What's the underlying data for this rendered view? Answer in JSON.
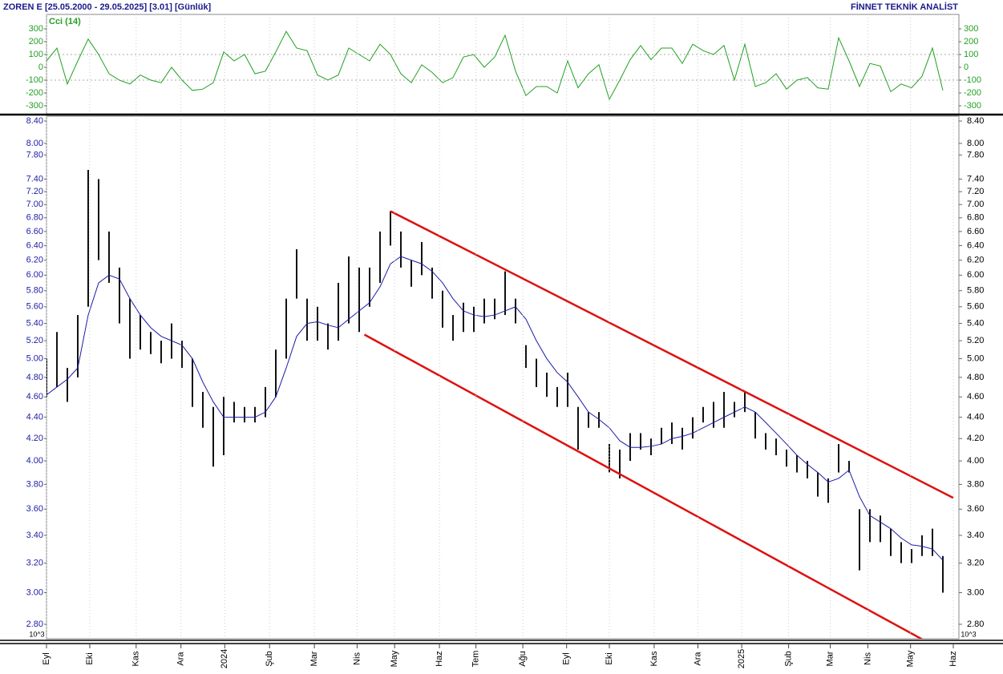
{
  "header": {
    "title": "ZOREN E  [25.05.2000 - 29.05.2025]  [3.01]  [Günlük]",
    "source": "FİNNET TEKNİK ANALİST",
    "scale_note": "10^3"
  },
  "chart_data": [
    {
      "type": "line",
      "title": "Cci (14)",
      "color": "#22a022",
      "x": [
        0,
        1,
        2,
        3,
        4,
        5,
        6,
        7,
        8,
        9,
        10,
        11,
        12,
        13,
        14,
        15,
        16,
        17,
        18,
        19,
        20,
        21,
        22,
        23,
        24,
        25,
        26,
        27,
        28,
        29,
        30,
        31,
        32,
        33,
        34,
        35,
        36,
        37,
        38,
        39,
        40,
        41,
        42,
        43,
        44,
        45,
        46,
        47,
        48,
        49,
        50,
        51,
        52,
        53,
        54,
        55,
        56,
        57,
        58,
        59,
        60,
        61,
        62,
        63,
        64,
        65,
        66,
        67,
        68,
        69,
        70,
        71,
        72,
        73,
        74,
        75,
        76,
        77,
        78,
        79,
        80,
        81,
        82,
        83,
        84,
        85,
        86
      ],
      "values": [
        50,
        150,
        -130,
        50,
        220,
        100,
        -50,
        -100,
        -130,
        -60,
        -100,
        -120,
        0,
        -100,
        -180,
        -170,
        -120,
        120,
        50,
        100,
        -50,
        -30,
        120,
        280,
        150,
        130,
        -60,
        -100,
        -60,
        150,
        100,
        50,
        180,
        100,
        -50,
        -120,
        20,
        -40,
        -120,
        -80,
        80,
        100,
        0,
        80,
        250,
        -30,
        -220,
        -150,
        -150,
        -200,
        50,
        -160,
        -50,
        20,
        -250,
        -100,
        60,
        170,
        60,
        150,
        150,
        30,
        180,
        130,
        100,
        170,
        -100,
        180,
        -150,
        -120,
        -50,
        -170,
        -100,
        -80,
        -160,
        -170,
        230,
        50,
        -150,
        30,
        10,
        -190,
        -130,
        -160,
        -70,
        150,
        -180
      ],
      "xlim": [
        0,
        87
      ],
      "ylim": [
        -360,
        400
      ],
      "yticks": [
        300,
        200,
        100,
        0,
        -100,
        -200,
        -300
      ],
      "grid": [
        100,
        -100
      ]
    },
    {
      "type": "ohlc",
      "color": "#111111",
      "log": true,
      "ma_color": "#1c1ca8",
      "channel_color": "#dd1111",
      "x": [
        0,
        1,
        2,
        3,
        4,
        5,
        6,
        7,
        8,
        9,
        10,
        11,
        12,
        13,
        14,
        15,
        16,
        17,
        18,
        19,
        20,
        21,
        22,
        23,
        24,
        25,
        26,
        27,
        28,
        29,
        30,
        31,
        32,
        33,
        34,
        35,
        36,
        37,
        38,
        39,
        40,
        41,
        42,
        43,
        44,
        45,
        46,
        47,
        48,
        49,
        50,
        51,
        52,
        53,
        54,
        55,
        56,
        57,
        58,
        59,
        60,
        61,
        62,
        63,
        64,
        65,
        66,
        67,
        68,
        69,
        70,
        71,
        72,
        73,
        74,
        75,
        76,
        77,
        78,
        79,
        80,
        81,
        82,
        83,
        84,
        85,
        86
      ],
      "high": [
        5.0,
        5.3,
        4.9,
        5.5,
        7.55,
        7.4,
        6.6,
        6.1,
        5.7,
        5.5,
        5.3,
        5.2,
        5.4,
        5.2,
        5.0,
        4.65,
        4.5,
        4.6,
        4.55,
        4.5,
        4.5,
        4.7,
        5.1,
        5.7,
        6.35,
        5.7,
        5.6,
        5.4,
        5.9,
        6.25,
        6.1,
        6.1,
        6.6,
        6.9,
        6.6,
        6.2,
        6.45,
        6.1,
        5.8,
        5.5,
        5.65,
        5.6,
        5.7,
        5.7,
        6.05,
        5.7,
        5.15,
        5.0,
        4.85,
        4.7,
        4.85,
        4.5,
        4.45,
        4.45,
        4.15,
        4.1,
        4.25,
        4.25,
        4.2,
        4.3,
        4.35,
        4.3,
        4.4,
        4.5,
        4.55,
        4.65,
        4.55,
        4.65,
        4.45,
        4.25,
        4.2,
        4.1,
        4.05,
        4.0,
        3.9,
        3.85,
        4.15,
        4.0,
        3.6,
        3.6,
        3.55,
        3.45,
        3.35,
        3.3,
        3.4,
        3.45,
        3.25
      ],
      "low": [
        4.6,
        4.7,
        4.55,
        4.8,
        5.6,
        6.2,
        5.9,
        5.4,
        5.0,
        5.1,
        5.05,
        4.95,
        5.0,
        4.9,
        4.5,
        4.3,
        3.95,
        4.05,
        4.35,
        4.35,
        4.35,
        4.4,
        4.6,
        5.0,
        5.7,
        5.2,
        5.2,
        5.1,
        5.2,
        5.4,
        5.3,
        5.6,
        5.9,
        6.4,
        6.1,
        5.85,
        6.0,
        5.7,
        5.35,
        5.2,
        5.3,
        5.3,
        5.4,
        5.45,
        5.5,
        5.4,
        4.9,
        4.7,
        4.6,
        4.5,
        4.5,
        4.1,
        4.3,
        4.3,
        3.9,
        3.85,
        4.0,
        4.1,
        4.05,
        4.15,
        4.15,
        4.1,
        4.2,
        4.35,
        4.3,
        4.3,
        4.4,
        4.45,
        4.2,
        4.1,
        4.05,
        3.95,
        3.9,
        3.85,
        3.7,
        3.65,
        3.9,
        3.9,
        3.15,
        3.35,
        3.35,
        3.25,
        3.2,
        3.2,
        3.25,
        3.25,
        3.0
      ],
      "ma": [
        4.62,
        4.7,
        4.78,
        4.9,
        5.5,
        5.9,
        6.0,
        5.95,
        5.7,
        5.5,
        5.35,
        5.25,
        5.2,
        5.15,
        5.0,
        4.75,
        4.55,
        4.4,
        4.4,
        4.4,
        4.4,
        4.45,
        4.6,
        4.9,
        5.25,
        5.4,
        5.42,
        5.38,
        5.35,
        5.45,
        5.55,
        5.65,
        5.85,
        6.15,
        6.25,
        6.2,
        6.15,
        6.05,
        5.9,
        5.7,
        5.55,
        5.5,
        5.48,
        5.5,
        5.55,
        5.6,
        5.45,
        5.2,
        5.0,
        4.85,
        4.75,
        4.6,
        4.45,
        4.38,
        4.3,
        4.18,
        4.12,
        4.12,
        4.13,
        4.15,
        4.2,
        4.22,
        4.25,
        4.3,
        4.35,
        4.4,
        4.45,
        4.5,
        4.45,
        4.35,
        4.25,
        4.15,
        4.05,
        3.97,
        3.9,
        3.82,
        3.85,
        3.92,
        3.7,
        3.55,
        3.5,
        3.45,
        3.38,
        3.33,
        3.32,
        3.3,
        3.22
      ],
      "channels": [
        {
          "x1": 33,
          "y1": 6.9,
          "x2": 87,
          "y2": 3.69
        },
        {
          "x1": 30.5,
          "y1": 5.27,
          "x2": 84.6,
          "y2": 2.69
        }
      ],
      "xlim": [
        0,
        87
      ],
      "ylim": [
        2.713,
        8.489
      ],
      "yticks": [
        {
          "value": 8.4,
          "label": "8.40"
        },
        {
          "value": 8,
          "label": "8.00"
        },
        {
          "value": 7.8,
          "label": "7.80"
        },
        {
          "value": 7.4,
          "label": "7.40"
        },
        {
          "value": 7.2,
          "label": "7.20"
        },
        {
          "value": 7,
          "label": "7.00"
        },
        {
          "value": 6.8,
          "label": "6.80"
        },
        {
          "value": 6.6,
          "label": "6.60"
        },
        {
          "value": 6.4,
          "label": "6.40"
        },
        {
          "value": 6.2,
          "label": "6.20"
        },
        {
          "value": 6,
          "label": "6.00"
        },
        {
          "value": 5.8,
          "label": "5.80"
        },
        {
          "value": 5.6,
          "label": "5.60"
        },
        {
          "value": 5.4,
          "label": "5.40"
        },
        {
          "value": 5.2,
          "label": "5.20"
        },
        {
          "value": 5,
          "label": "5.00"
        },
        {
          "value": 4.8,
          "label": "4.80"
        },
        {
          "value": 4.6,
          "label": "4.60"
        },
        {
          "value": 4.4,
          "label": "4.40"
        },
        {
          "value": 4.2,
          "label": "4.20"
        },
        {
          "value": 4,
          "label": "4.00"
        },
        {
          "value": 3.8,
          "label": "3.80"
        },
        {
          "value": 3.6,
          "label": "3.60"
        },
        {
          "value": 3.4,
          "label": "3.40"
        },
        {
          "value": 3.2,
          "label": "3.20"
        },
        {
          "value": 3,
          "label": "3.00"
        },
        {
          "value": 2.8,
          "label": "2.80"
        }
      ],
      "xticks": [
        {
          "value": 0,
          "label": "Eyl"
        },
        {
          "value": 4.15,
          "label": "Eki"
        },
        {
          "value": 8.6,
          "label": "Kas"
        },
        {
          "value": 12.9,
          "label": "Ara"
        },
        {
          "value": 17.1,
          "label": "2024"
        },
        {
          "value": 21.4,
          "label": "Şub"
        },
        {
          "value": 25.7,
          "label": "Mar"
        },
        {
          "value": 29.8,
          "label": "Nis"
        },
        {
          "value": 33.4,
          "label": "May"
        },
        {
          "value": 37.7,
          "label": "Haz"
        },
        {
          "value": 41.2,
          "label": "Tem"
        },
        {
          "value": 45.7,
          "label": "Ağu"
        },
        {
          "value": 49.9,
          "label": "Eyl"
        },
        {
          "value": 54,
          "label": "Eki"
        },
        {
          "value": 58.3,
          "label": "Kas"
        },
        {
          "value": 62.5,
          "label": "Ara"
        },
        {
          "value": 66.7,
          "label": "2025"
        },
        {
          "value": 71.2,
          "label": "Şub"
        },
        {
          "value": 75.2,
          "label": "Mar"
        },
        {
          "value": 78.8,
          "label": "Nis"
        },
        {
          "value": 82.9,
          "label": "May"
        },
        {
          "value": 87,
          "label": "Haz"
        }
      ]
    }
  ]
}
